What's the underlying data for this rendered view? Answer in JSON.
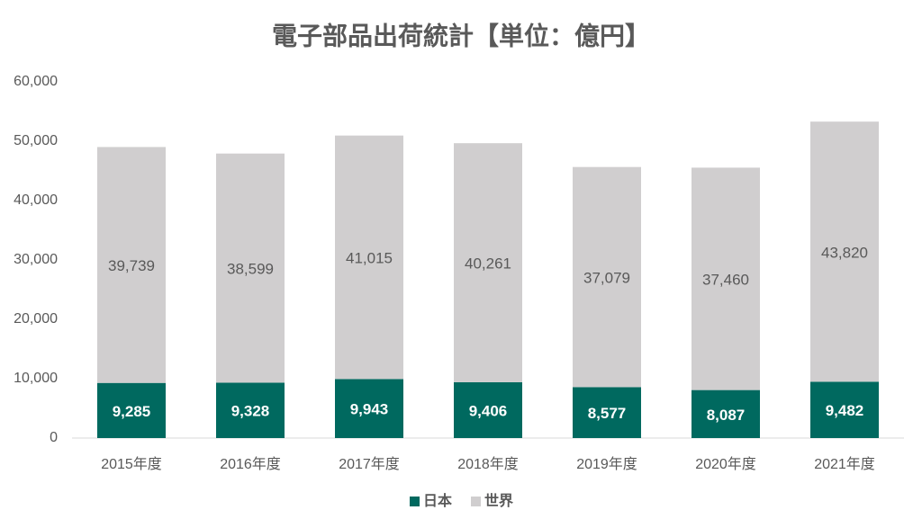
{
  "chart_data": {
    "type": "stacked-bar",
    "title": "電子部品出荷統計【単位：億円】",
    "categories": [
      "2015年度",
      "2016年度",
      "2017年度",
      "2018年度",
      "2019年度",
      "2020年度",
      "2021年度"
    ],
    "series": [
      {
        "name": "日本",
        "color": "#00695f",
        "values": [
          9285,
          9328,
          9943,
          9406,
          8577,
          8087,
          9482
        ],
        "value_labels": [
          "9,285",
          "9,328",
          "9,943",
          "9,406",
          "8,577",
          "8,087",
          "9,482"
        ]
      },
      {
        "name": "世界",
        "color": "#d0cecf",
        "values": [
          39739,
          38599,
          41015,
          40261,
          37079,
          37460,
          43820
        ],
        "value_labels": [
          "39,739",
          "38,599",
          "41,015",
          "40,261",
          "37,079",
          "37,460",
          "43,820"
        ]
      }
    ],
    "ylim": [
      0,
      60000
    ],
    "yticks": [
      0,
      {
        "value": 10000,
        "label": "10,000"
      },
      {
        "value": 20000,
        "label": "20,000"
      },
      {
        "value": 30000,
        "label": "30,000"
      },
      {
        "value": 40000,
        "label": "40,000"
      },
      {
        "value": 50000,
        "label": "50,000"
      },
      {
        "value": 60000,
        "label": "60,000"
      }
    ],
    "grid": false,
    "legend": "bottom"
  }
}
